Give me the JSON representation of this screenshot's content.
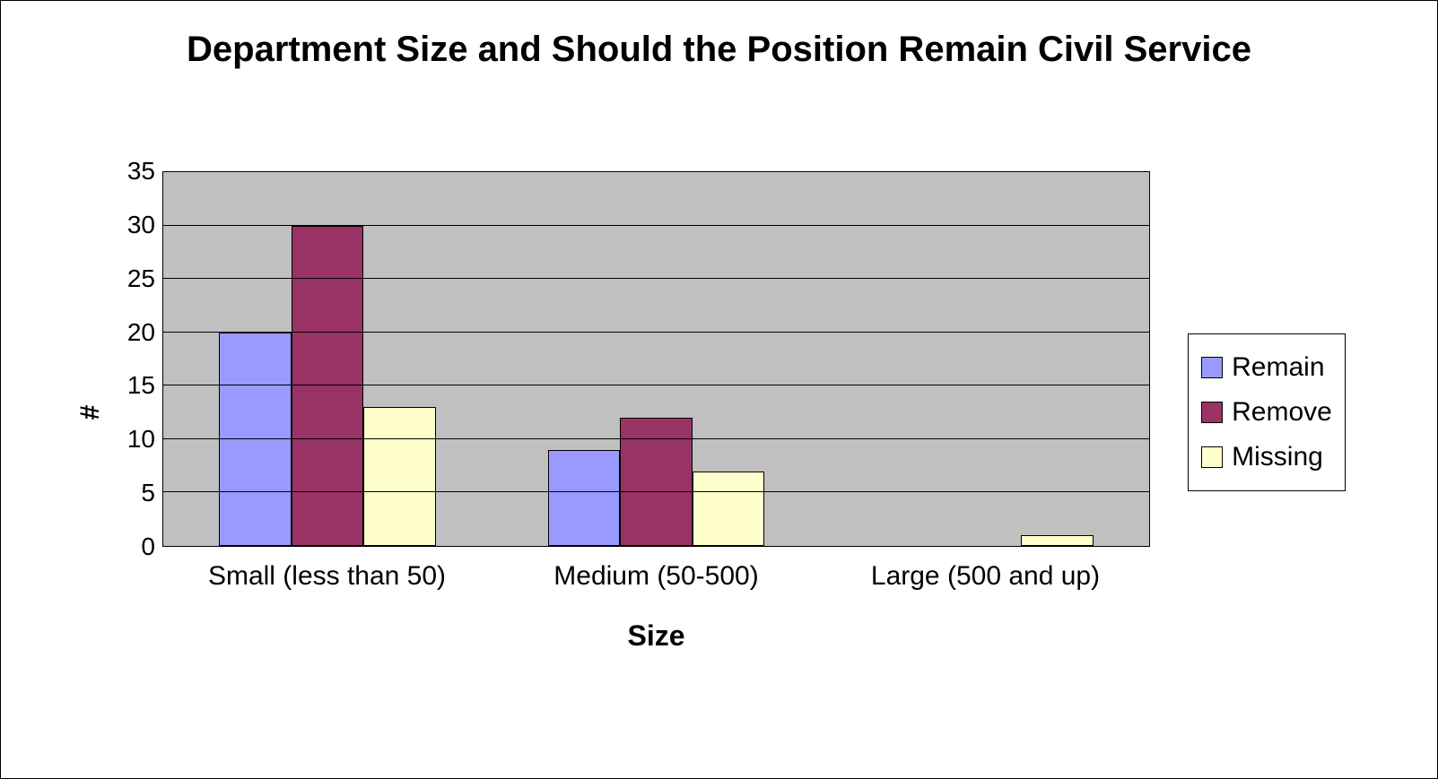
{
  "chart": {
    "type": "bar",
    "title": "Department Size and Should the Position Remain Civil Service",
    "x_axis_title": "Size",
    "y_axis_title": "#",
    "categories": [
      "Small (less than 50)",
      "Medium (50-500)",
      "Large (500 and up)"
    ],
    "series": [
      {
        "name": "Remain",
        "color": "#9999ff",
        "values": [
          20,
          9,
          0
        ]
      },
      {
        "name": "Remove",
        "color": "#993366",
        "values": [
          30,
          12,
          0
        ]
      },
      {
        "name": "Missing",
        "color": "#ffffcc",
        "values": [
          13,
          7,
          1
        ]
      }
    ],
    "y_min": 0,
    "y_max": 35,
    "y_tick_step": 5,
    "plot_background": "#c0c0c0",
    "gridline_color": "#000000",
    "bar_border_color": "#000000",
    "title_fontsize": 40,
    "axis_title_fontsize": 32,
    "tick_fontsize": 28,
    "legend_fontsize": 30,
    "bar_width_pct": 22,
    "group_inner_gap_pct": 0
  }
}
